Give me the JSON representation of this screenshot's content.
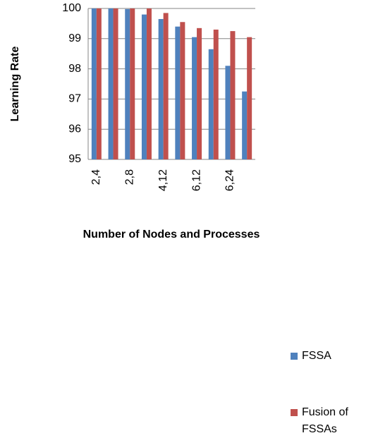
{
  "chart_data": {
    "type": "bar",
    "x_label": "Number of Nodes and Processes",
    "y_label": "Learning Rate",
    "categories": [
      "2,4",
      null,
      "2,8",
      null,
      "4,12",
      null,
      "6,12",
      null,
      "6,24",
      null
    ],
    "series": [
      {
        "name": "FSSA",
        "color": "#4f81bd",
        "values": [
          100,
          100,
          99.98,
          99.8,
          99.65,
          99.4,
          99.05,
          98.65,
          98.1,
          97.25
        ]
      },
      {
        "name": "Fusion of FSSAs",
        "color": "#c0504d",
        "values": [
          100,
          100,
          100,
          100,
          99.85,
          99.55,
          99.35,
          99.3,
          99.25,
          99.05
        ]
      }
    ],
    "ylim": [
      95,
      100
    ],
    "yticks": [
      95,
      96,
      97,
      98,
      99,
      100
    ],
    "grid": true,
    "legend": "right"
  }
}
